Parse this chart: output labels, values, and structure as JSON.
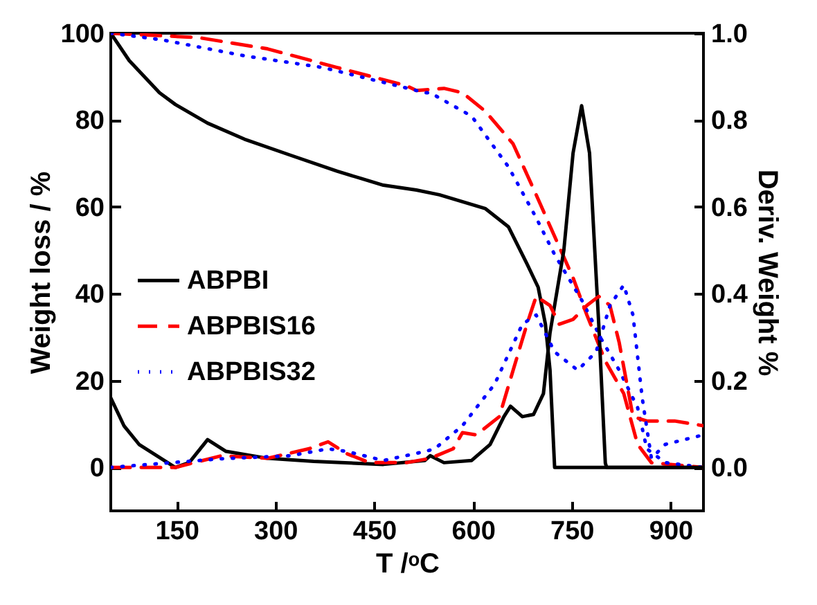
{
  "chart_data": {
    "type": "line",
    "xlabel": "T /ᵒC",
    "ylabel": "Weight loss / %",
    "y2label": "Deriv. Weight  %",
    "xlim": [
      50,
      950
    ],
    "xticks": [
      150,
      300,
      450,
      600,
      750,
      900
    ],
    "ylim": [
      -10,
      100
    ],
    "yticks": [
      0,
      20,
      40,
      60,
      80,
      100
    ],
    "y2lim": [
      -0.1,
      1.0
    ],
    "y2ticks": [
      {
        "value": 0,
        "label": "0.0"
      },
      {
        "value": 0.2,
        "label": "0.2"
      },
      {
        "value": 0.4,
        "label": "0.4"
      },
      {
        "value": 0.6,
        "label": "0.6"
      },
      {
        "value": 0.8,
        "label": "0.8"
      },
      {
        "value": 1,
        "label": "1.0"
      }
    ],
    "legend": "left",
    "grid": false,
    "marker": "none",
    "series": [
      {
        "name": "ABPBI",
        "color": "#000000",
        "line_style": "solid",
        "x": [
          50,
          78,
          124,
          148,
          197,
          253,
          323,
          394,
          464,
          514,
          549,
          619,
          654,
          682,
          699,
          710,
          717,
          724,
          800,
          950
        ],
        "values": [
          100,
          93.7,
          86.3,
          83.6,
          79.3,
          75.6,
          71.9,
          68.2,
          65,
          63.9,
          62.8,
          59.6,
          55.4,
          46.9,
          41.5,
          33,
          22.4,
          0,
          0,
          0
        ]
      },
      {
        "name": "ABPBIS16",
        "color": "#ff0000",
        "line_style": "dashed",
        "x": [
          50,
          183,
          288,
          394,
          499,
          514,
          556,
          584,
          619,
          661,
          696,
          724,
          752,
          773,
          801,
          829,
          850,
          871,
          950
        ],
        "values": [
          100,
          99,
          96.4,
          92.1,
          87.9,
          86.8,
          87.3,
          86.3,
          82,
          74.5,
          62.8,
          53.2,
          43.7,
          35.1,
          24.5,
          17,
          5.3,
          1.1,
          0
        ]
      },
      {
        "name": "ABPBIS32",
        "color": "#0000ff",
        "line_style": "dotted",
        "x": [
          50,
          127,
          253,
          372,
          528,
          535,
          598,
          654,
          696,
          724,
          766,
          794,
          822,
          850,
          864,
          892,
          950
        ],
        "values": [
          100,
          98.5,
          94.8,
          92.1,
          86.3,
          86.3,
          80.9,
          69.2,
          57.5,
          49,
          38.3,
          29.8,
          22.4,
          13.8,
          4.3,
          1.1,
          0
        ]
      },
      {
        "color": "#000000",
        "line_style": "solid",
        "axis": "y2",
        "x": [
          50,
          70,
          93,
          148,
          169,
          197,
          225,
          288,
          358,
          464,
          527,
          535,
          556,
          598,
          626,
          647,
          657,
          675,
          692,
          707,
          717,
          738,
          752,
          765,
          777,
          791,
          801,
          803,
          950
        ],
        "values": [
          0.16,
          0.096,
          0.053,
          0,
          0.011,
          0.064,
          0.037,
          0.021,
          0.014,
          0.007,
          0.016,
          0.027,
          0.011,
          0.016,
          0.053,
          0.117,
          0.141,
          0.117,
          0.122,
          0.17,
          0.31,
          0.5,
          0.724,
          0.833,
          0.724,
          0.33,
          0.01,
          0,
          0
        ]
      },
      {
        "color": "#ff0000",
        "line_style": "dashed",
        "axis": "y2",
        "x": [
          50,
          148,
          218,
          288,
          351,
          380,
          408,
          443,
          499,
          535,
          570,
          584,
          605,
          640,
          661,
          682,
          696,
          717,
          731,
          752,
          773,
          791,
          808,
          822,
          843,
          864,
          906,
          950
        ],
        "values": [
          0,
          0,
          0.027,
          0.021,
          0.043,
          0.059,
          0.032,
          0.011,
          0.011,
          0.021,
          0.043,
          0.08,
          0.075,
          0.117,
          0.224,
          0.33,
          0.394,
          0.373,
          0.33,
          0.341,
          0.373,
          0.394,
          0.373,
          0.288,
          0.117,
          0.107,
          0.107,
          0.096
        ]
      },
      {
        "color": "#0000ff",
        "line_style": "dotted",
        "axis": "y2",
        "x": [
          50,
          218,
          323,
          380,
          408,
          464,
          528,
          542,
          584,
          633,
          675,
          696,
          724,
          759,
          787,
          808,
          829,
          843,
          857,
          871,
          892,
          950
        ],
        "values": [
          0,
          0.02,
          0.027,
          0.043,
          0.037,
          0.016,
          0.037,
          0.043,
          0.096,
          0.192,
          0.33,
          0.351,
          0.266,
          0.224,
          0.266,
          0.373,
          0.42,
          0.351,
          0.16,
          0.021,
          0.053,
          0.075
        ]
      }
    ]
  }
}
